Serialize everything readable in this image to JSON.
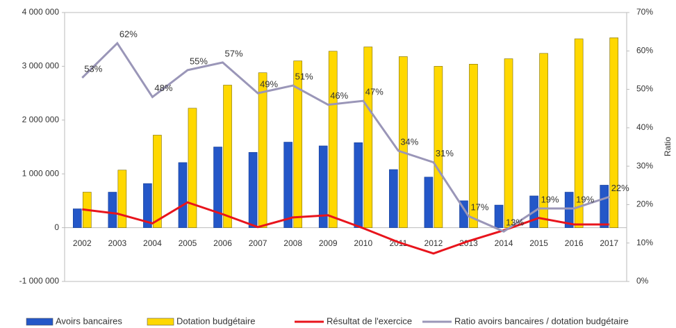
{
  "chart_data": {
    "type": "bar",
    "categories": [
      "2002",
      "2003",
      "2004",
      "2005",
      "2006",
      "2007",
      "2008",
      "2009",
      "2010",
      "2011",
      "2012",
      "2013",
      "2014",
      "2015",
      "2016",
      "2017"
    ],
    "ylim": [
      -1000000,
      4000000
    ],
    "yticks": [
      {
        "value": -1000000,
        "label": "-1 000 000"
      },
      0,
      {
        "value": 1000000,
        "label": "1 000 000"
      },
      {
        "value": 2000000,
        "label": "2 000 000"
      },
      {
        "value": 3000000,
        "label": "3 000 000"
      },
      {
        "value": 4000000,
        "label": "4 000 000"
      }
    ],
    "y2lim": [
      0,
      70
    ],
    "y2ticks": [
      {
        "value": 0,
        "label": "0%"
      },
      {
        "value": 10,
        "label": "10%"
      },
      {
        "value": 20,
        "label": "20%"
      },
      {
        "value": 30,
        "label": "30%"
      },
      {
        "value": 40,
        "label": "40%"
      },
      {
        "value": 50,
        "label": "50%"
      },
      {
        "value": 60,
        "label": "60%"
      },
      {
        "value": 70,
        "label": "70%"
      }
    ],
    "y2label": "Ratio",
    "series": [
      {
        "name": "Avoirs bancaires",
        "type": "bar",
        "color": "#2457c8",
        "values": [
          350000,
          660000,
          820000,
          1210000,
          1500000,
          1400000,
          1590000,
          1520000,
          1580000,
          1080000,
          940000,
          500000,
          420000,
          590000,
          660000,
          790000
        ]
      },
      {
        "name": "Dotation budgétaire",
        "type": "bar",
        "color": "#ffd800",
        "values": [
          660000,
          1070000,
          1720000,
          2220000,
          2650000,
          2880000,
          3100000,
          3280000,
          3360000,
          3180000,
          3000000,
          3040000,
          3140000,
          3240000,
          3510000,
          3530000
        ]
      },
      {
        "name": "Résultat de l'exercice",
        "type": "line",
        "color": "#e8141c",
        "values": [
          340000,
          260000,
          80000,
          470000,
          250000,
          10000,
          190000,
          230000,
          -10000,
          -270000,
          -480000,
          -250000,
          -50000,
          180000,
          60000,
          60000
        ]
      },
      {
        "name": "Ratio avoirs bancaires / dotation budgétaire",
        "type": "line",
        "color": "#9a96b8",
        "axis": "y2",
        "values": [
          53,
          62,
          48,
          55,
          57,
          49,
          51,
          46,
          47,
          34,
          31,
          17,
          13,
          19,
          19,
          22
        ],
        "value_labels": [
          "53%",
          "62%",
          "48%",
          "55%",
          "57%",
          "49%",
          "51%",
          "46%",
          "47%",
          "34%",
          "31%",
          "17%",
          "13%",
          "19%",
          "19%",
          "22%"
        ]
      }
    ]
  }
}
